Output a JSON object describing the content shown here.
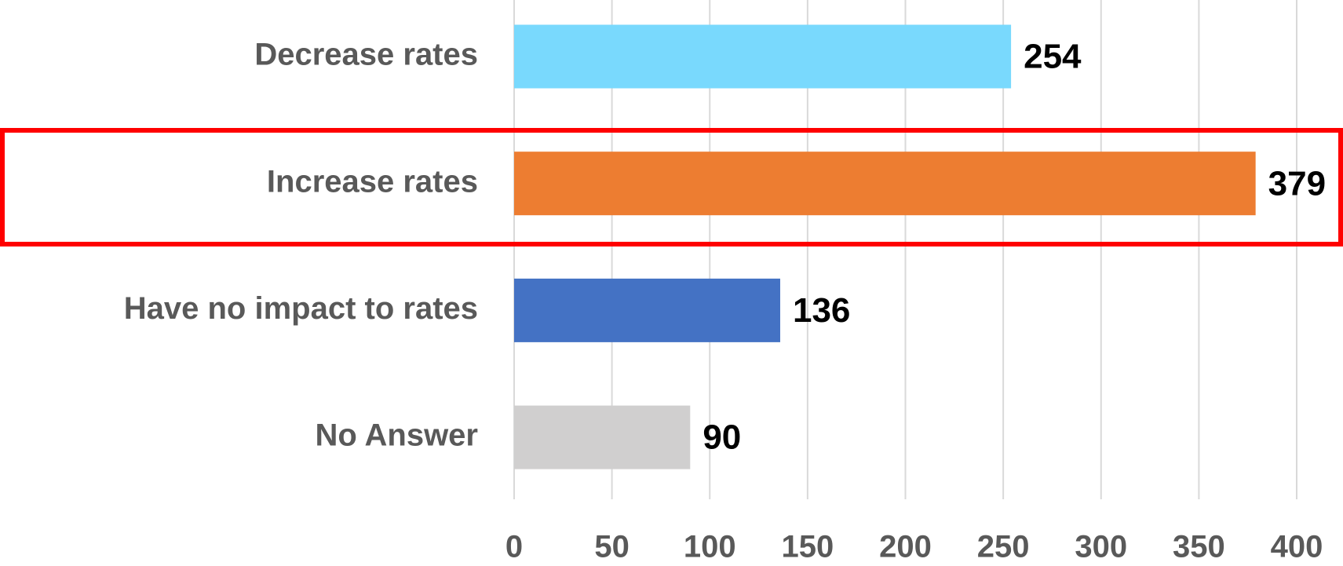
{
  "chart_data": {
    "type": "bar",
    "orientation": "horizontal",
    "categories": [
      "Decrease rates",
      "Increase rates",
      "Have no impact to rates",
      "No Answer"
    ],
    "values": [
      254,
      379,
      136,
      90
    ],
    "colors": [
      "#79d9fd",
      "#ed7d31",
      "#4472c4",
      "#d0cfcf"
    ],
    "xlim": [
      0,
      400
    ],
    "xticks": [
      0,
      50,
      100,
      150,
      200,
      250,
      300,
      350,
      400
    ],
    "grid": true
  }
}
